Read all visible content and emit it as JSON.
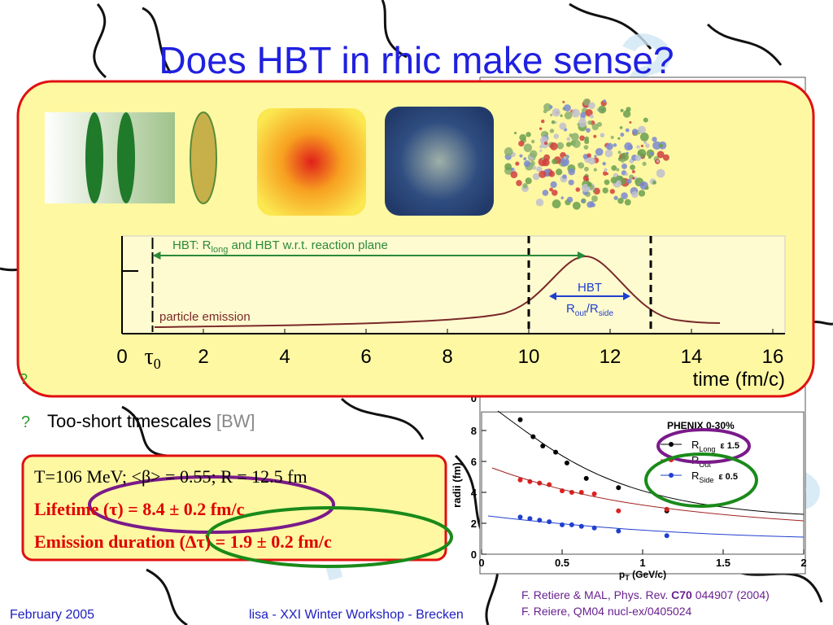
{
  "title": "Does HBT in rhic make sense?",
  "timeline": {
    "hbt_label": [
      "HBT:  R",
      "long",
      " and HBT w.r.t. reaction plane"
    ],
    "emission_label": "particle emission",
    "hbt_box": [
      "HBT",
      "R",
      "out",
      "/R",
      "side"
    ],
    "xlim": [
      0,
      16
    ],
    "xticks": [
      0,
      {
        "value": 0.75,
        "label": "τ",
        "sub": "0"
      },
      2,
      4,
      6,
      8,
      10,
      12,
      14,
      16
    ],
    "dashed_at": [
      10,
      13
    ],
    "arrow_range": [
      0.75,
      11.4
    ],
    "axis_label": "time (fm/c)"
  },
  "partial_bullet": "?",
  "bullets": [
    {
      "mark": "?",
      "text": "Too-short timescales ",
      "note": "[BW]"
    }
  ],
  "fit_box": {
    "lines": [
      "T=106 MeV;  <β> = 0.55;  R = 12.5 fm",
      "Lifetime (τ) = 8.4 ± 0.2 fm/c",
      "Emission duration (Δτ) = 1.9 ± 0.2 fm/c"
    ]
  },
  "plot": {
    "type": "scatter",
    "title": "PHENIX 0-30%",
    "ylabel": "radii (fm)",
    "xlabel": [
      "p",
      "T",
      " (GeV/c)"
    ],
    "upper_ytick": 0,
    "xlim": [
      0,
      2
    ],
    "ylim": [
      0,
      9.2
    ],
    "xticks": [
      0,
      0.5,
      1,
      1.5,
      2
    ],
    "yticks": [
      0,
      2,
      4,
      6,
      8
    ],
    "series": [
      {
        "name": "R",
        "sub": "Long",
        "note": "ε 1.5",
        "color": "#000000",
        "x": [
          0.24,
          0.32,
          0.38,
          0.46,
          0.53,
          0.65,
          0.85,
          1.15
        ],
        "values": [
          8.7,
          7.6,
          7.0,
          6.6,
          5.9,
          4.9,
          4.3,
          2.8
        ]
      },
      {
        "name": "R",
        "sub": "Out",
        "note": "",
        "color": "#e02020",
        "x": [
          0.24,
          0.3,
          0.36,
          0.42,
          0.5,
          0.56,
          0.62,
          0.7,
          0.85,
          1.15
        ],
        "values": [
          4.8,
          4.7,
          4.6,
          4.5,
          4.1,
          4.0,
          4.0,
          3.9,
          2.8,
          2.9
        ]
      },
      {
        "name": "R",
        "sub": "Side",
        "note": "ε 0.5",
        "color": "#1f3fd0",
        "x": [
          0.24,
          0.3,
          0.36,
          0.42,
          0.5,
          0.56,
          0.62,
          0.7,
          0.85,
          1.15
        ],
        "values": [
          2.4,
          2.3,
          2.2,
          2.1,
          1.9,
          1.9,
          1.8,
          1.7,
          1.5,
          1.2
        ]
      }
    ]
  },
  "references": [
    [
      "F. Retiere & MAL, Phys. Rev. ",
      "C70",
      " 044907 (2004)"
    ],
    "F. Reiere, QM04 nucl-ex/0405024"
  ],
  "footer": {
    "date": "February 2005",
    "event": "lisa - XXI Winter Workshop - Brecken"
  }
}
